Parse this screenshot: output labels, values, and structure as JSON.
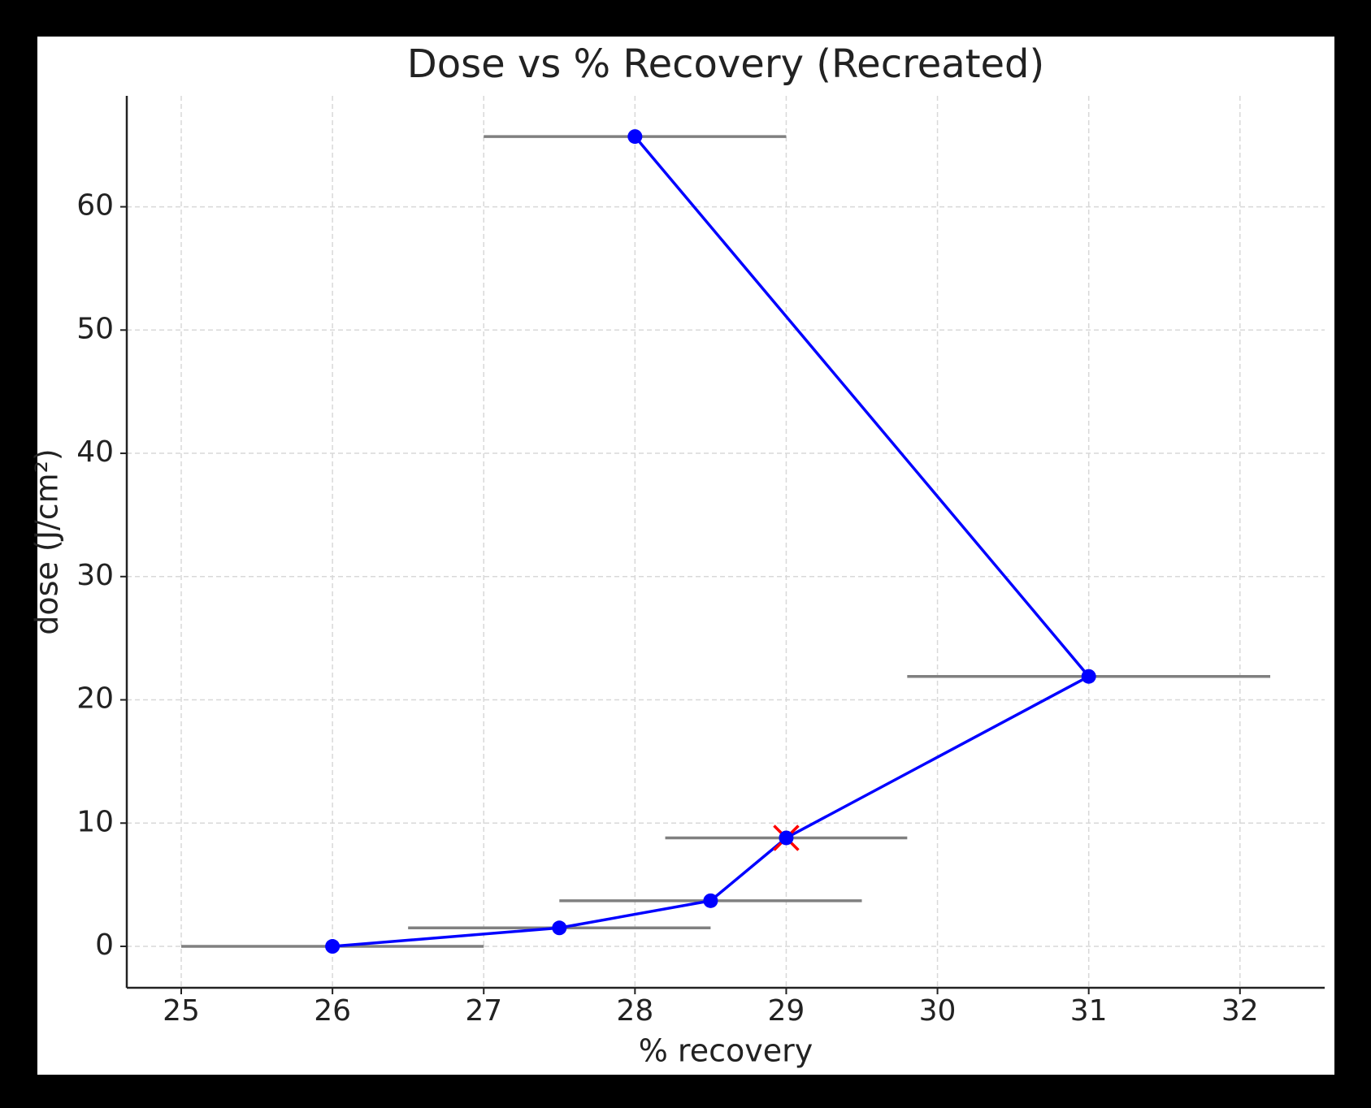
{
  "chart_data": {
    "type": "errorbar-line",
    "title": "Dose vs % Recovery (Recreated)",
    "x_label": "% recovery",
    "y_label": "dose (J/cm²)",
    "series": [
      {
        "color": "#0000ff",
        "error_color": "#808080",
        "x": [
          26,
          27.5,
          28.5,
          29,
          31,
          28
        ],
        "values": [
          0,
          1.5,
          3.7,
          8.8,
          21.9,
          65.7
        ],
        "xerr": [
          1,
          1,
          1,
          0.8,
          1.2,
          1
        ]
      }
    ],
    "highlight": {
      "x": 29,
      "y": 8.8,
      "color": "#ff0000"
    },
    "xlim": [
      24.64,
      32.56
    ],
    "xticks": [
      25,
      26,
      27,
      28,
      29,
      30,
      31,
      32
    ],
    "ylim": [
      -3.36,
      69.0
    ],
    "yticks": [
      0,
      10,
      20,
      30,
      40,
      50,
      60
    ],
    "grid": true
  }
}
